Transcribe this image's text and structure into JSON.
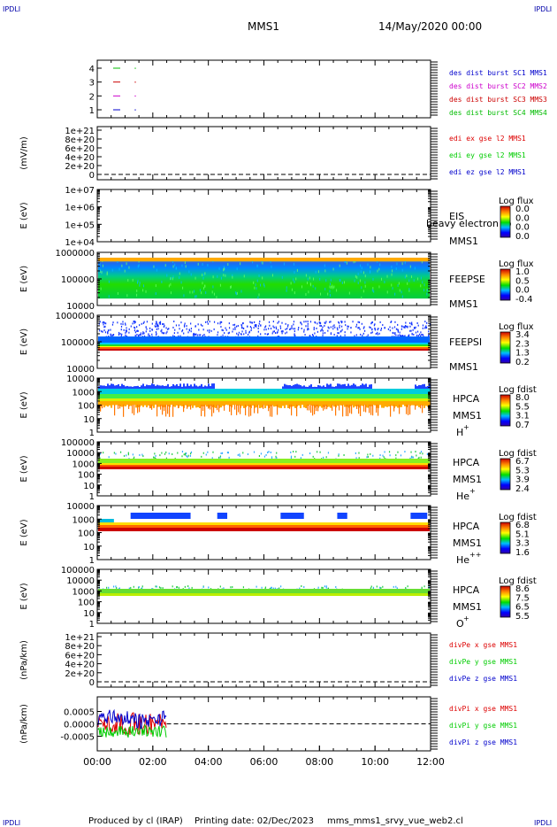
{
  "corner": {
    "tl": "IPDLI",
    "tr": "IPDLI",
    "bl": "IPDLI",
    "br": "IPDLI"
  },
  "header": {
    "mission": "MMS1",
    "datetime": "14/May/2020 00:00"
  },
  "footer": {
    "producer": "Produced by cl (IRAP)",
    "printing": "Printing date: 02/Dec/2023",
    "script": "mms_mms1_srvy_vue_web2.cl"
  },
  "colors": {
    "burst1": "#0000cc",
    "burst2": "#cc00cc",
    "burst3": "#cc0000",
    "burst4": "#00bb00",
    "x": "#dd0000",
    "y": "#00cc00",
    "z": "#0000cc"
  },
  "chart_data": {
    "type": "multi-panel",
    "x_ticks": [
      "00:00",
      "02:00",
      "04:00",
      "06:00",
      "08:00",
      "10:00",
      "12:00"
    ],
    "xlim_hours": [
      0,
      12
    ],
    "panels": [
      {
        "id": "burst",
        "type": "scatter",
        "yticks": [
          "1",
          "2",
          "3",
          "4"
        ],
        "legend": [
          "des dist burst SC1 MMS1",
          "des dist burst SC2 MMS2",
          "des dist burst SC3 MMS3",
          "des dist burst SC4 MMS4"
        ],
        "series": [
          {
            "y": 1,
            "x": [
              0.7,
              1.35
            ]
          },
          {
            "y": 2,
            "x": [
              0.7,
              1.35
            ]
          },
          {
            "y": 3,
            "x": [
              0.7,
              1.35
            ]
          },
          {
            "y": 4,
            "x": [
              0.7,
              1.35
            ]
          }
        ]
      },
      {
        "id": "edi",
        "type": "line",
        "ylabel": "(mV/m)",
        "yticks": [
          "0",
          "2e+20",
          "4e+20",
          "6e+20",
          "8e+20",
          "1e+21"
        ],
        "legend": [
          "edi ex gse l2 MMS1",
          "edi ey gse l2 MMS1",
          "edi ez gse l2 MMS1"
        ]
      },
      {
        "id": "eis",
        "type": "heatmap",
        "ylabel": "E (eV)",
        "yticks": [
          "1e+04",
          "1e+05",
          "1e+06",
          "1e+07"
        ],
        "labels": [
          "EIS",
          "MMS1"
        ],
        "overlay": "heavy electron to",
        "cbar_title": "Log flux",
        "cbar_ticks": [
          "0.0",
          "0.0",
          "0.0",
          "0.0"
        ]
      },
      {
        "id": "feepse",
        "type": "heatmap",
        "ylabel": "E (eV)",
        "yticks": [
          "10000",
          "100000",
          "1000000"
        ],
        "labels": [
          "FEEPSE",
          "MMS1"
        ],
        "cbar_title": "Log flux",
        "cbar_ticks": [
          "1.0",
          "0.5",
          "0.0",
          "-0.4"
        ]
      },
      {
        "id": "feepsi",
        "type": "heatmap",
        "ylabel": "E (eV)",
        "yticks": [
          "10000",
          "100000",
          "1000000"
        ],
        "labels": [
          "FEEPSI",
          "MMS1"
        ],
        "cbar_title": "Log flux",
        "cbar_ticks": [
          "3.4",
          "2.3",
          "1.3",
          "0.2"
        ]
      },
      {
        "id": "hpca_h",
        "type": "heatmap",
        "ylabel": "E (eV)",
        "yticks": [
          "1",
          "10",
          "100",
          "1000",
          "10000"
        ],
        "labels": [
          "HPCA",
          "MMS1"
        ],
        "species": "H",
        "charge": "+",
        "cbar_title": "Log fdist",
        "cbar_ticks": [
          "8.0",
          "5.5",
          "3.1",
          "0.7"
        ]
      },
      {
        "id": "hpca_he",
        "type": "heatmap",
        "ylabel": "E (eV)",
        "yticks": [
          "1",
          "10",
          "100",
          "1000",
          "10000",
          "100000"
        ],
        "labels": [
          "HPCA",
          "MMS1"
        ],
        "species": "He",
        "charge": "+",
        "cbar_title": "Log fdist",
        "cbar_ticks": [
          "6.7",
          "5.3",
          "3.9",
          "2.4"
        ]
      },
      {
        "id": "hpca_hepp",
        "type": "heatmap",
        "ylabel": "E (eV)",
        "yticks": [
          "1",
          "10",
          "100",
          "1000",
          "10000"
        ],
        "labels": [
          "HPCA",
          "MMS1"
        ],
        "species": "He",
        "charge": "++",
        "cbar_title": "Log fdist",
        "cbar_ticks": [
          "6.8",
          "5.1",
          "3.3",
          "1.6"
        ]
      },
      {
        "id": "hpca_o",
        "type": "heatmap",
        "ylabel": "E (eV)",
        "yticks": [
          "1",
          "10",
          "100",
          "1000",
          "10000",
          "100000"
        ],
        "labels": [
          "HPCA",
          "MMS1"
        ],
        "species": "O",
        "charge": "+",
        "cbar_title": "Log fdist",
        "cbar_ticks": [
          "8.6",
          "7.5",
          "6.5",
          "5.5"
        ]
      },
      {
        "id": "divpe",
        "type": "line",
        "ylabel": "(nPa/km)",
        "yticks": [
          "0",
          "2e+20",
          "4e+20",
          "6e+20",
          "8e+20",
          "1e+21"
        ],
        "legend": [
          "divPe x gse MMS1",
          "divPe y gse MMS1",
          "divPe z gse MMS1"
        ]
      },
      {
        "id": "divpi",
        "type": "line",
        "ylabel": "(nPa/km)",
        "yticks": [
          "-0.0005",
          "0.0000",
          "0.0005"
        ],
        "ylim": [
          -0.0008,
          0.0008
        ],
        "legend": [
          "divPi x gse MMS1",
          "divPi y gse MMS1",
          "divPi z gse MMS1"
        ],
        "data_end_hours": 2.5
      }
    ]
  }
}
